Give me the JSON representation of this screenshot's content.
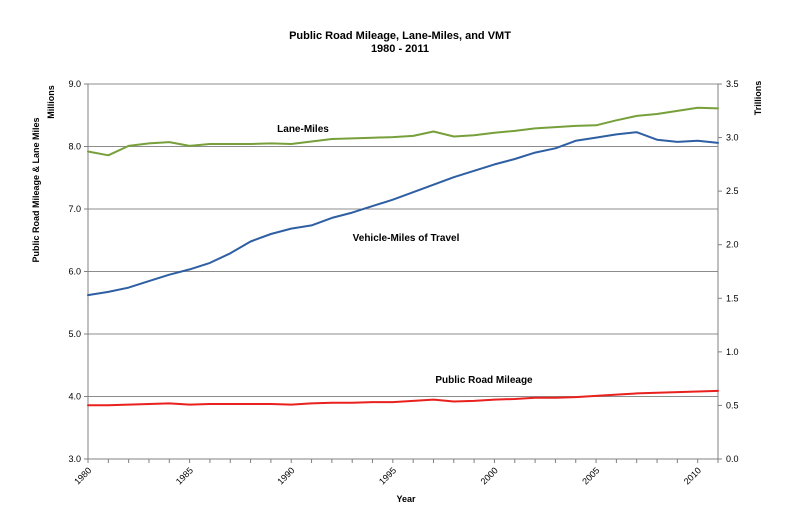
{
  "chart_data": {
    "type": "line",
    "title": "Public Road Mileage, Lane-Miles, and VMT",
    "subtitle": "1980 - 2011",
    "xlabel": "Year",
    "ylabel_left": "Public Road Mileage & Lane Miles",
    "ylabel_left_unit": "Millions",
    "ylabel_right_unit": "Trillions",
    "xlim": [
      1980,
      2011
    ],
    "ylim_left": [
      3.0,
      9.0
    ],
    "ylim_right": [
      0.0,
      3.5
    ],
    "x_ticks": [
      "1980",
      "1985",
      "1990",
      "1995",
      "2000",
      "2005",
      "2010"
    ],
    "y_ticks_left": [
      "3.0",
      "4.0",
      "5.0",
      "6.0",
      "7.0",
      "8.0",
      "9.0"
    ],
    "y_ticks_right": [
      "0.0",
      "0.5",
      "1.0",
      "1.5",
      "2.0",
      "2.5",
      "3.0",
      "3.5"
    ],
    "grid": true,
    "x": [
      1980,
      1981,
      1982,
      1983,
      1984,
      1985,
      1986,
      1987,
      1988,
      1989,
      1990,
      1991,
      1992,
      1993,
      1994,
      1995,
      1996,
      1997,
      1998,
      1999,
      2000,
      2001,
      2002,
      2003,
      2004,
      2005,
      2006,
      2007,
      2008,
      2009,
      2010,
      2011
    ],
    "series": [
      {
        "name": "Lane-Miles",
        "axis": "left",
        "color": "#77a03a",
        "values": [
          7.92,
          7.86,
          8.01,
          8.05,
          8.07,
          8.01,
          8.04,
          8.04,
          8.04,
          8.05,
          8.04,
          8.08,
          8.12,
          8.13,
          8.14,
          8.15,
          8.17,
          8.24,
          8.16,
          8.18,
          8.22,
          8.25,
          8.29,
          8.31,
          8.33,
          8.34,
          8.42,
          8.49,
          8.52,
          8.57,
          8.62,
          8.61
        ]
      },
      {
        "name": "Vehicle-Miles of Travel",
        "axis": "right",
        "color": "#2e5fa3",
        "values": [
          1.53,
          1.56,
          1.6,
          1.66,
          1.72,
          1.77,
          1.83,
          1.92,
          2.03,
          2.1,
          2.15,
          2.18,
          2.25,
          2.3,
          2.36,
          2.42,
          2.49,
          2.56,
          2.63,
          2.69,
          2.75,
          2.8,
          2.86,
          2.9,
          2.97,
          3.0,
          3.03,
          3.05,
          2.98,
          2.96,
          2.97,
          2.95
        ]
      },
      {
        "name": "Public Road Mileage",
        "axis": "left",
        "color": "#e8201e",
        "values": [
          3.86,
          3.86,
          3.87,
          3.88,
          3.89,
          3.87,
          3.88,
          3.88,
          3.88,
          3.88,
          3.87,
          3.89,
          3.9,
          3.9,
          3.91,
          3.91,
          3.93,
          3.95,
          3.92,
          3.93,
          3.95,
          3.96,
          3.98,
          3.98,
          3.99,
          4.01,
          4.03,
          4.05,
          4.06,
          4.07,
          4.08,
          4.09
        ]
      }
    ]
  }
}
